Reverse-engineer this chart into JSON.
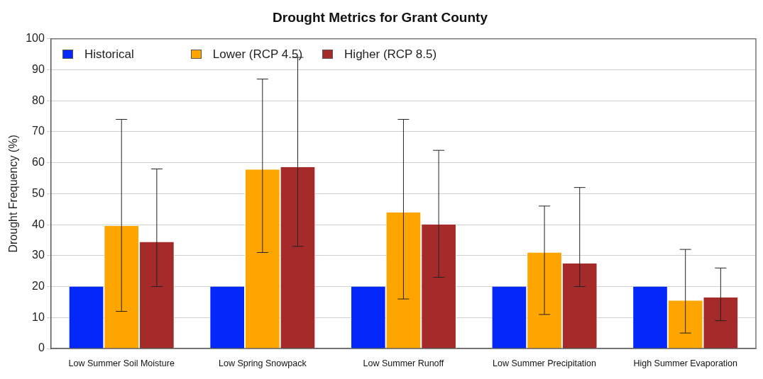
{
  "chart_data": {
    "type": "bar",
    "title": "Drought Metrics for Grant County",
    "ylabel": "Drought Frequency (%)",
    "categories": [
      "Low Summer Soil Moisture",
      "Low Spring Snowpack",
      "Low Summer Runoff",
      "Low Summer Precipitation",
      "High Summer Evaporation"
    ],
    "series": [
      {
        "name": "Historical",
        "color": "#0528fa",
        "values": [
          20,
          20,
          20,
          20,
          20
        ]
      },
      {
        "name": "Lower (RCP 4.5)",
        "color": "#ffa500",
        "values": [
          39.6,
          57.8,
          44,
          31,
          15.5
        ],
        "errors": [
          [
            12,
            74
          ],
          [
            31,
            87
          ],
          [
            16,
            74
          ],
          [
            11,
            46
          ],
          [
            5,
            32
          ]
        ]
      },
      {
        "name": "Higher (RCP 8.5)",
        "color": "#a52a2a",
        "values": [
          34.4,
          58.6,
          40,
          27.5,
          16.5
        ],
        "errors": [
          [
            20,
            58
          ],
          [
            33,
            94
          ],
          [
            23,
            64
          ],
          [
            20,
            52
          ],
          [
            9,
            26
          ]
        ]
      }
    ],
    "ylim": [
      0,
      100
    ],
    "yticks": [
      0,
      10,
      20,
      30,
      40,
      50,
      60,
      70,
      80,
      90,
      100
    ],
    "grid": "y",
    "legend": "top left"
  }
}
